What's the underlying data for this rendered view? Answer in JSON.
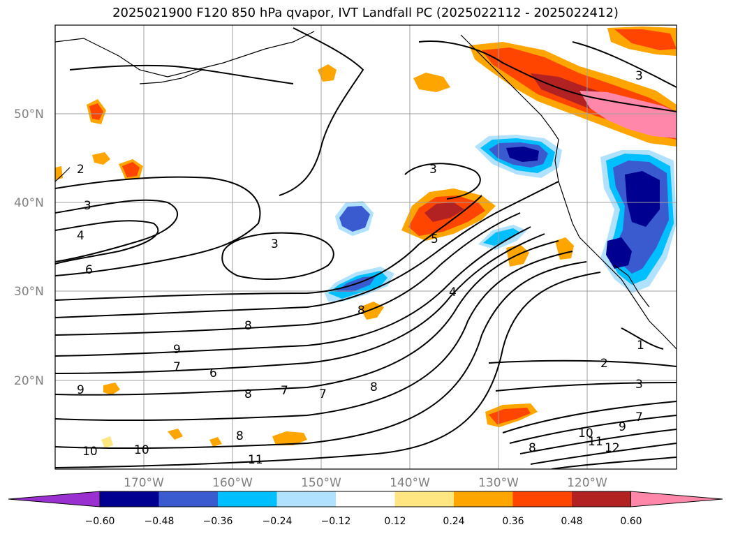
{
  "title": "2025021900 F120 850 hPa qvapor, IVT Landfall PC (2025022112 - 2025022412)",
  "latitude_labels": [
    "50°N",
    "40°N",
    "30°N",
    "20°N"
  ],
  "longitude_labels": [
    "170°W",
    "160°W",
    "150°W",
    "140°W",
    "130°W",
    "120°W"
  ],
  "colorbar": {
    "colors": [
      "#9b30d0",
      "#000090",
      "#3a5ad0",
      "#00bfff",
      "#b0e2ff",
      "#ffffff",
      "#ffe680",
      "#ffa500",
      "#ff4500",
      "#b22222",
      "#ff88aa"
    ],
    "tick_labels": [
      "−0.60",
      "−0.48",
      "−0.36",
      "−0.24",
      "−0.12",
      "0.12",
      "0.24",
      "0.36",
      "0.48",
      "0.60"
    ]
  },
  "contour_labels": [
    "2",
    "3",
    "4",
    "6",
    "3",
    "3",
    "3",
    "5",
    "4",
    "8",
    "9",
    "7",
    "6",
    "8",
    "8",
    "7",
    "7",
    "8",
    "9",
    "10",
    "8",
    "10",
    "11",
    "10",
    "11",
    "12",
    "9",
    "7",
    "8",
    "3",
    "2",
    "1"
  ]
}
